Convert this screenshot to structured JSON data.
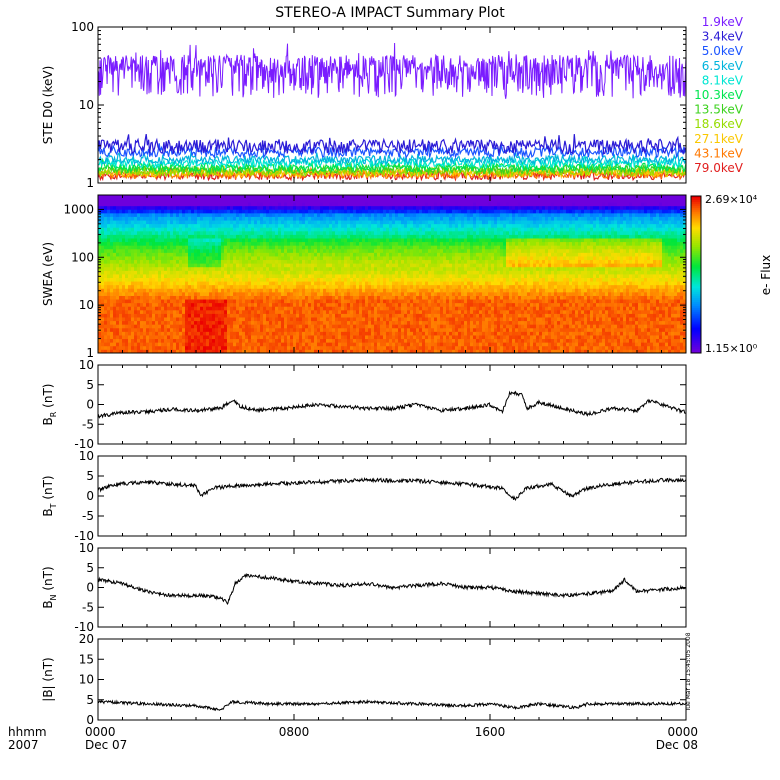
{
  "title": "STEREO-A IMPACT Summary Plot",
  "timestamp_label": "Tue Mar 18 15:45:05 2008",
  "chart_data": [
    {
      "id": "ste",
      "type": "line",
      "ylabel": "STE D0 (keV)",
      "yscale": "log",
      "ylim": [
        1,
        100
      ],
      "ticks": [
        1,
        10,
        100
      ],
      "tick_labels": [
        "1",
        "10",
        "100"
      ],
      "series": [
        {
          "name": "1.9keV",
          "color": "#7a1cff",
          "level": 28,
          "spread": 0.22
        },
        {
          "name": "3.4keV",
          "color": "#2b1bd6",
          "level": 3.0,
          "spread": 0.07
        },
        {
          "name": "5.0keV",
          "color": "#1c55ff",
          "level": 2.5,
          "spread": 0.05
        },
        {
          "name": "6.5keV",
          "color": "#00b4dc",
          "level": 2.0,
          "spread": 0.04
        },
        {
          "name": "8.1keV",
          "color": "#00e6d2",
          "level": 1.8,
          "spread": 0.04
        },
        {
          "name": "10.3keV",
          "color": "#00e650",
          "level": 1.6,
          "spread": 0.04
        },
        {
          "name": "13.5keV",
          "color": "#3cd21e",
          "level": 1.5,
          "spread": 0.04
        },
        {
          "name": "18.6keV",
          "color": "#96dc00",
          "level": 1.4,
          "spread": 0.04
        },
        {
          "name": "27.1keV",
          "color": "#fac800",
          "level": 1.35,
          "spread": 0.04
        },
        {
          "name": "43.1keV",
          "color": "#ff7800",
          "level": 1.3,
          "spread": 0.04
        },
        {
          "name": "79.0keV",
          "color": "#e11e1e",
          "level": 1.25,
          "spread": 0.04
        }
      ]
    },
    {
      "id": "swea",
      "type": "heatmap",
      "ylabel": "SWEA (eV)",
      "yscale": "log",
      "ylim": [
        1,
        2000
      ],
      "ticks": [
        1,
        10,
        100,
        1000
      ],
      "tick_labels": [
        "1",
        "10",
        "100",
        "1000"
      ],
      "colorbar": {
        "label": "e- Flux",
        "max_label": "2.69×10⁴",
        "min_label": "1.15×10⁰",
        "max": 26900,
        "min": 1.15
      }
    },
    {
      "id": "br",
      "type": "line",
      "ylabel": "B_R (nT)",
      "ylim": [
        -10,
        10
      ],
      "ticks": [
        -10,
        -5,
        0,
        5,
        10
      ],
      "tick_labels": [
        "-10",
        "-5",
        "0",
        "5",
        "10"
      ],
      "keypoints": [
        [
          0,
          -3
        ],
        [
          0.5,
          -2.5
        ],
        [
          1,
          -2
        ],
        [
          2,
          -1.8
        ],
        [
          3,
          -1.2
        ],
        [
          4,
          -1.5
        ],
        [
          5,
          -1
        ],
        [
          5.5,
          1
        ],
        [
          5.8,
          -0.5
        ],
        [
          6.5,
          -1.5
        ],
        [
          7.5,
          -1
        ],
        [
          9,
          0
        ],
        [
          10,
          -0.5
        ],
        [
          11,
          -1
        ],
        [
          12,
          -1
        ],
        [
          13,
          0
        ],
        [
          14,
          -1.5
        ],
        [
          15,
          -1
        ],
        [
          16,
          0
        ],
        [
          16.5,
          -2
        ],
        [
          16.8,
          3
        ],
        [
          17.3,
          2.5
        ],
        [
          17.5,
          -1
        ],
        [
          18,
          0.5
        ],
        [
          19,
          -1
        ],
        [
          20,
          -2.5
        ],
        [
          21,
          -1
        ],
        [
          22,
          -1.5
        ],
        [
          22.5,
          1
        ],
        [
          23,
          0
        ],
        [
          24,
          -2
        ]
      ]
    },
    {
      "id": "bt",
      "type": "line",
      "ylabel": "B_T (nT)",
      "ylim": [
        -10,
        10
      ],
      "ticks": [
        -10,
        -5,
        0,
        5,
        10
      ],
      "tick_labels": [
        "-10",
        "-5",
        "0",
        "5",
        "10"
      ],
      "keypoints": [
        [
          0,
          1.5
        ],
        [
          0.8,
          3
        ],
        [
          2,
          3.5
        ],
        [
          3,
          3
        ],
        [
          4,
          2.5
        ],
        [
          4.2,
          0
        ],
        [
          4.7,
          2
        ],
        [
          5.5,
          2.5
        ],
        [
          7,
          3
        ],
        [
          9,
          3.5
        ],
        [
          11,
          4
        ],
        [
          13,
          3.8
        ],
        [
          15,
          3
        ],
        [
          16.5,
          2
        ],
        [
          17,
          -0.8
        ],
        [
          17.5,
          2
        ],
        [
          18.5,
          3
        ],
        [
          19.3,
          0
        ],
        [
          20,
          2
        ],
        [
          21,
          3
        ],
        [
          22,
          3.5
        ],
        [
          23,
          4
        ],
        [
          24,
          4
        ]
      ]
    },
    {
      "id": "bn",
      "type": "line",
      "ylabel": "B_N (nT)",
      "ylim": [
        -10,
        10
      ],
      "ticks": [
        -10,
        -5,
        0,
        5,
        10
      ],
      "tick_labels": [
        "-10",
        "-5",
        "0",
        "5",
        "10"
      ],
      "keypoints": [
        [
          0,
          2
        ],
        [
          1,
          1
        ],
        [
          2,
          -1
        ],
        [
          3,
          -2
        ],
        [
          4,
          -2
        ],
        [
          5,
          -2.5
        ],
        [
          5.3,
          -4
        ],
        [
          5.6,
          1
        ],
        [
          6,
          3
        ],
        [
          7,
          2.5
        ],
        [
          8,
          1.5
        ],
        [
          9,
          1
        ],
        [
          10,
          0.5
        ],
        [
          11,
          1
        ],
        [
          12,
          0
        ],
        [
          13,
          0.5
        ],
        [
          14,
          1
        ],
        [
          15,
          0
        ],
        [
          16,
          0
        ],
        [
          17,
          -1
        ],
        [
          18,
          -1.5
        ],
        [
          19,
          -2
        ],
        [
          20,
          -1.5
        ],
        [
          21,
          -1
        ],
        [
          21.5,
          2
        ],
        [
          22,
          -1
        ],
        [
          23,
          -0.5
        ],
        [
          24,
          0
        ]
      ]
    },
    {
      "id": "bmag",
      "type": "line",
      "ylabel": "|B| (nT)",
      "ylim": [
        0,
        20
      ],
      "ticks": [
        0,
        5,
        10,
        15,
        20
      ],
      "tick_labels": [
        "0",
        "5",
        "10",
        "15",
        "20"
      ],
      "keypoints": [
        [
          0,
          4.5
        ],
        [
          2,
          4
        ],
        [
          4,
          3.5
        ],
        [
          5,
          2.5
        ],
        [
          5.5,
          4.5
        ],
        [
          7,
          4
        ],
        [
          9,
          4
        ],
        [
          11,
          4.5
        ],
        [
          13,
          4
        ],
        [
          15,
          3.5
        ],
        [
          16,
          4
        ],
        [
          17,
          3
        ],
        [
          18,
          4
        ],
        [
          19.5,
          3
        ],
        [
          20,
          4
        ],
        [
          22,
          4
        ],
        [
          24,
          4
        ]
      ]
    }
  ],
  "x_axis": {
    "row_label_top": "hhmm",
    "row_label_bottom": "2007",
    "range_hours": [
      0,
      24
    ],
    "ticks": [
      {
        "hour": 0,
        "top": "0000",
        "bottom": "Dec 07"
      },
      {
        "hour": 8,
        "top": "0800",
        "bottom": ""
      },
      {
        "hour": 16,
        "top": "1600",
        "bottom": ""
      },
      {
        "hour": 24,
        "top": "0000",
        "bottom": "Dec 08"
      }
    ]
  }
}
